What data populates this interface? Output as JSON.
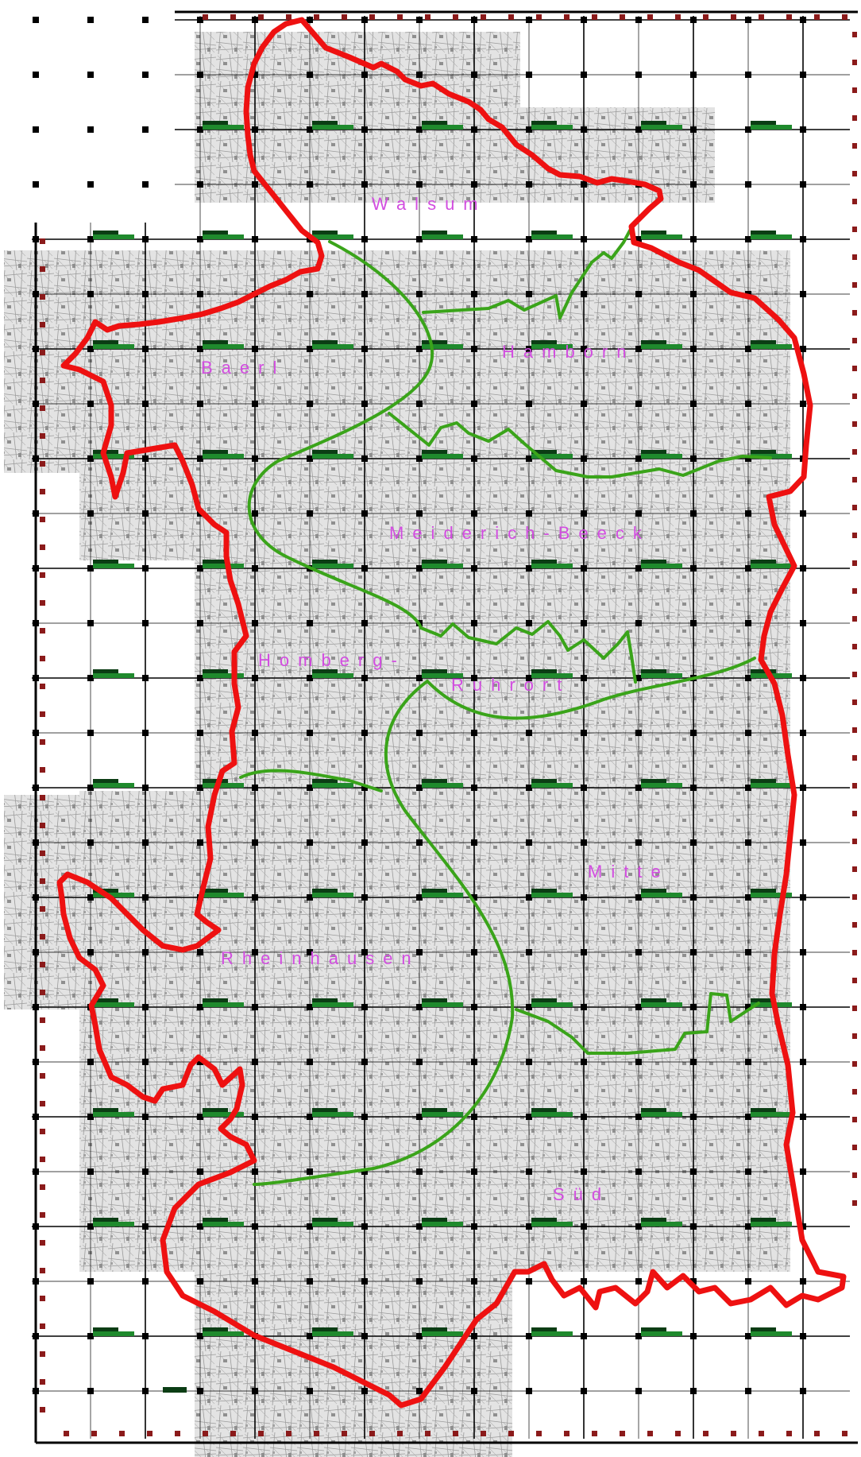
{
  "map": {
    "district_labels": [
      "Walsum",
      "Hamborn",
      "Baerl",
      "Meiderich-Beeck",
      "Homberg-",
      "Ruhrort",
      "Mitte",
      "Rheinhausen",
      "Süd"
    ]
  },
  "colors": {
    "city_boundary": "#ee1111",
    "district_boundary": "#3aa41a",
    "district_label": "#d24de0",
    "grid_line": "#000000",
    "edge_tick": "#8b1a1a",
    "sheet_marker_dark": "#0b3d14",
    "sheet_marker_light": "#1f8a2d"
  },
  "icons": {
    "grid_node": "grid-node-square-icon",
    "edge_tick": "edge-tick-icon",
    "sheet_marker": "sheet-marker-bar-icon"
  }
}
